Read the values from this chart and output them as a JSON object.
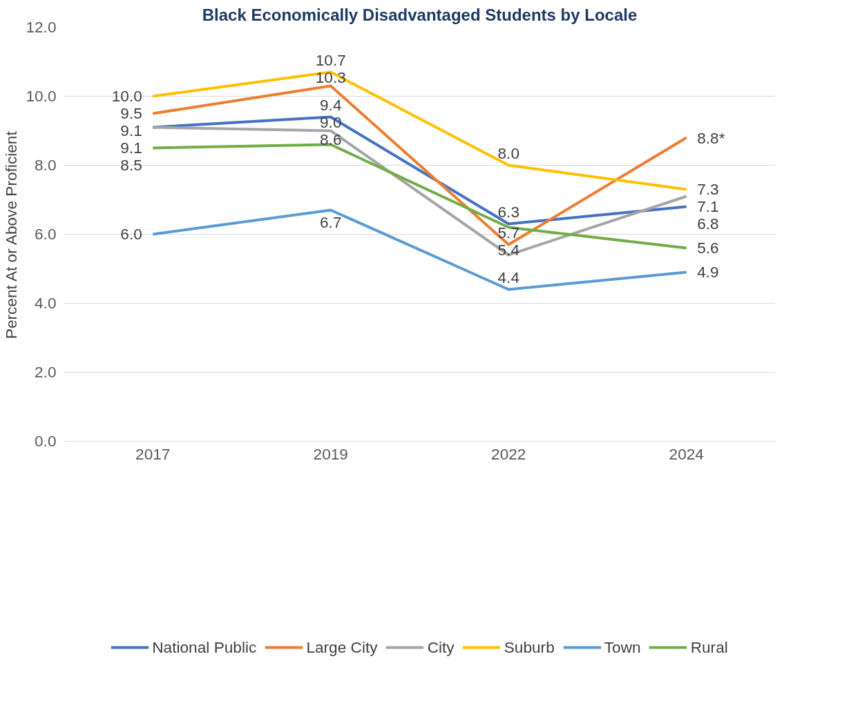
{
  "chart_data": {
    "type": "line",
    "title": "Black Economically Disadvantaged Students by Locale",
    "ylabel": "Percent At or Above Proficient",
    "categories": [
      "2017",
      "2019",
      "2022",
      "2024"
    ],
    "series": [
      {
        "name": "National Public",
        "color": "#4472c4",
        "values": [
          9.1,
          9.4,
          6.3,
          6.8
        ],
        "value_labels": [
          "9.1",
          "9.4",
          "6.3",
          "6.8"
        ]
      },
      {
        "name": "Large City",
        "color": "#ed7d31",
        "values": [
          9.5,
          10.3,
          5.7,
          8.8
        ],
        "value_labels": [
          "9.5",
          "10.3",
          "5.7",
          "8.8*"
        ]
      },
      {
        "name": "City",
        "color": "#a5a5a5",
        "values": [
          9.1,
          9.0,
          5.4,
          7.1
        ],
        "value_labels": [
          "9.1",
          "9.0",
          "5.4",
          "7.1"
        ]
      },
      {
        "name": "Suburb",
        "color": "#ffc000",
        "values": [
          10.0,
          10.7,
          8.0,
          7.3
        ],
        "value_labels": [
          "10.0",
          "10.7",
          "8.0",
          "7.3"
        ]
      },
      {
        "name": "Town",
        "color": "#5b9bd5",
        "values": [
          6.0,
          6.7,
          4.4,
          4.9
        ],
        "value_labels": [
          "6.0",
          "6.7",
          "4.4",
          "4.9"
        ]
      },
      {
        "name": "Rural",
        "color": "#70ad47",
        "values": [
          8.5,
          8.6,
          6.2,
          5.6
        ],
        "value_labels": [
          "8.5",
          "8.6",
          null,
          "5.6"
        ]
      }
    ],
    "ylim": [
      0,
      12
    ],
    "yticks": [
      {
        "value": 0,
        "label": "0.0"
      },
      {
        "value": 2,
        "label": "2.0"
      },
      {
        "value": 4,
        "label": "4.0"
      },
      {
        "value": 6,
        "label": "6.0"
      },
      {
        "value": 8,
        "label": "8.0"
      },
      {
        "value": 10,
        "label": "10.0"
      },
      {
        "value": 12,
        "label": "12.0"
      }
    ],
    "grid": "y",
    "legend": "bottom",
    "marker": "none",
    "line_style": "solid"
  }
}
